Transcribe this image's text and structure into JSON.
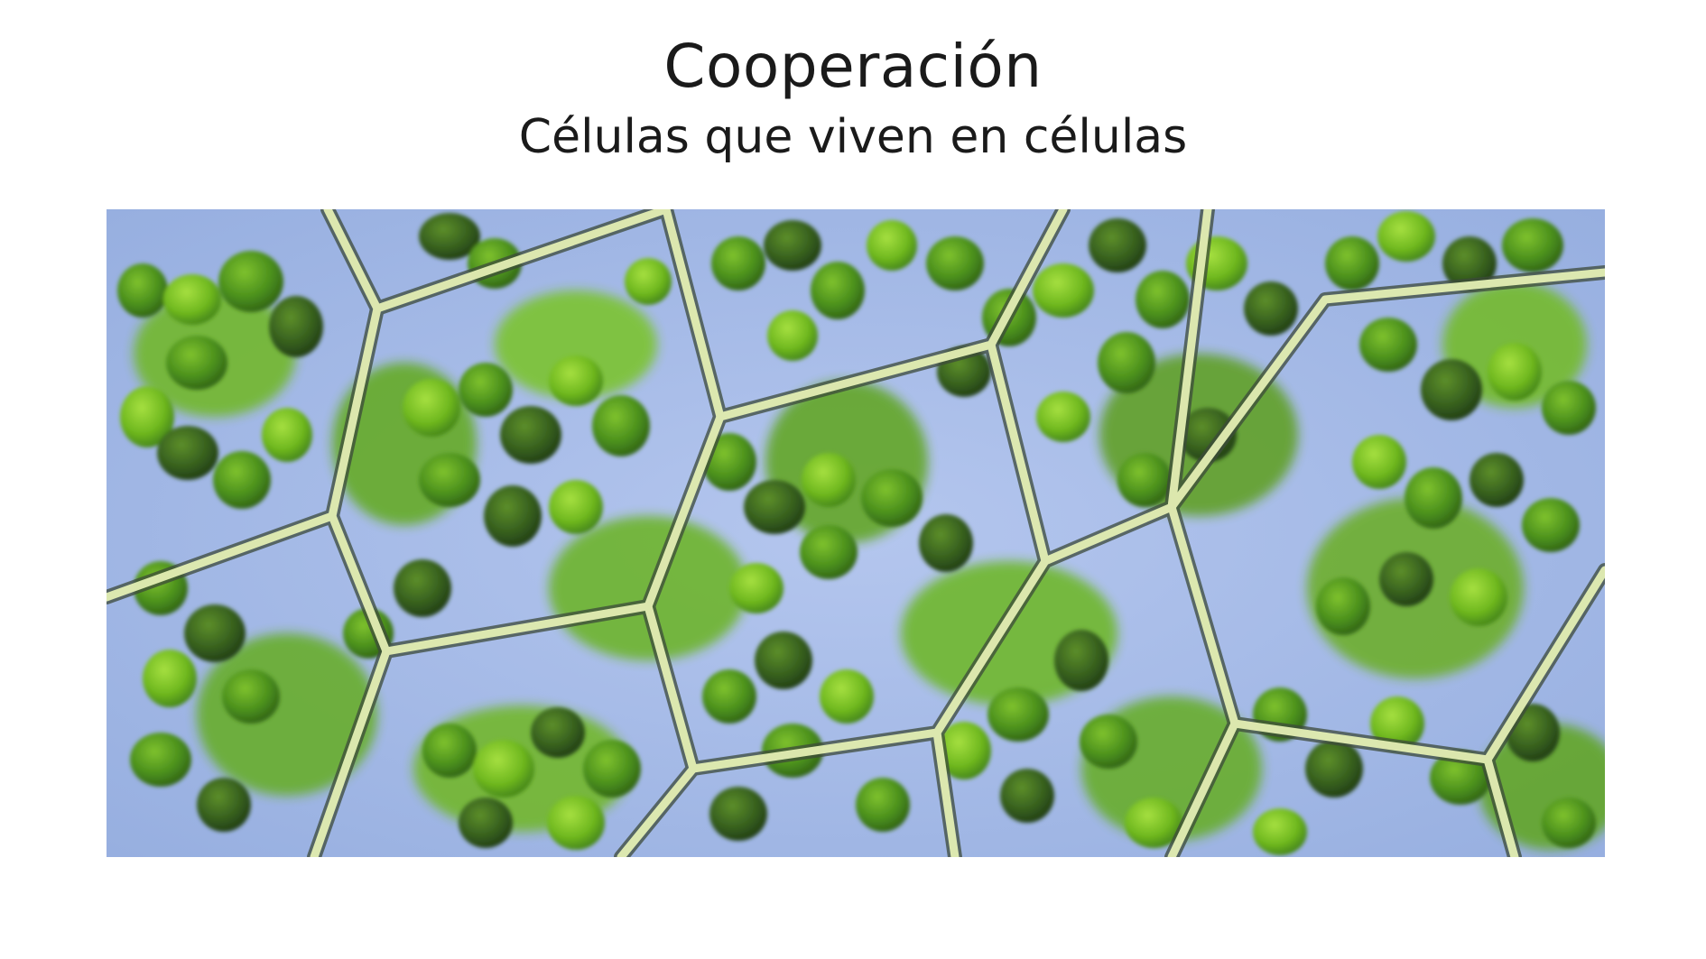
{
  "slide": {
    "title": "Cooperación",
    "subtitle": "Células que viven en células"
  },
  "figure": {
    "depiction": "plant-cells-with-chloroplasts-micrograph",
    "colors": {
      "cytoplasm": "#a9bde6",
      "chloroplast_light": "#7cc424",
      "chloroplast_mid": "#4f9a1e",
      "chloroplast_dark": "#2f5f1a",
      "cell_wall": "#e4efb4",
      "cell_wall_edge": "#3c4a3a"
    }
  }
}
